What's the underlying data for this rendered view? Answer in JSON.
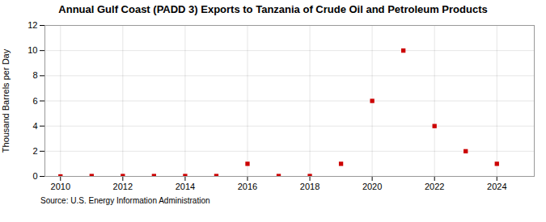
{
  "chart_data": {
    "type": "scatter",
    "title": "Annual Gulf Coast (PADD 3) Exports to Tanzania of Crude Oil and Petroleum Products",
    "ylabel": "Thousand Barrels per Day",
    "annotations": [
      "Source: U.S. Energy Information Administration"
    ],
    "x": [
      2010,
      2011,
      2012,
      2013,
      2014,
      2015,
      2016,
      2017,
      2018,
      2019,
      2020,
      2021,
      2022,
      2023,
      2024
    ],
    "values": [
      0.0,
      0.03,
      0.03,
      0.03,
      0.03,
      0.03,
      1.0,
      0.03,
      0.03,
      1.0,
      6.0,
      10.0,
      4.0,
      2.0,
      1.0
    ],
    "color": "#cc0000",
    "marker": "square",
    "xlim": [
      2009.5,
      2025.2
    ],
    "ylim": [
      0,
      12
    ],
    "xticks": [
      2010,
      2012,
      2014,
      2016,
      2018,
      2020,
      2022,
      2024
    ],
    "yticks": [
      0,
      2,
      4,
      6,
      8,
      10,
      12
    ],
    "grid": true
  }
}
